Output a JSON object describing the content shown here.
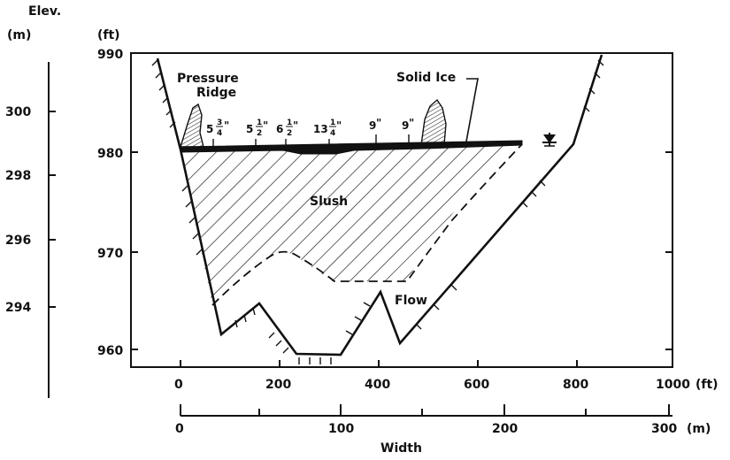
{
  "elev_label": "Elev.",
  "m_unit": "(m)",
  "ft_unit": "(ft)",
  "elev_ft_ticks": [
    "990",
    "980",
    "970",
    "960"
  ],
  "elev_m_ticks": [
    "300",
    "298",
    "296",
    "294"
  ],
  "width_ft_ticks": [
    "0",
    "200",
    "400",
    "600",
    "800",
    "1000"
  ],
  "width_ft_unit": "(ft)",
  "width_m_ticks": [
    "0",
    "100",
    "200",
    "300"
  ],
  "width_m_unit": "(m)",
  "width_label": "Width",
  "labels": {
    "pressure_ridge_1": "Pressure",
    "pressure_ridge_2": "Ridge",
    "solid_ice": "Solid Ice",
    "slush": "Slush",
    "flow": "Flow"
  },
  "thickness_labels": [
    {
      "whole": "5",
      "num": "3",
      "den": "4",
      "unit": "\""
    },
    {
      "whole": "5",
      "num": "1",
      "den": "2",
      "unit": "\""
    },
    {
      "whole": "6",
      "num": "1",
      "den": "2",
      "unit": "\""
    },
    {
      "whole": "13",
      "num": "1",
      "den": "4",
      "unit": "\""
    },
    {
      "whole": "9",
      "num": "",
      "den": "",
      "unit": "\""
    },
    {
      "whole": "9",
      "num": "",
      "den": "",
      "unit": "\""
    }
  ],
  "colors": {
    "ink": "#111111",
    "background": "#ffffff"
  }
}
